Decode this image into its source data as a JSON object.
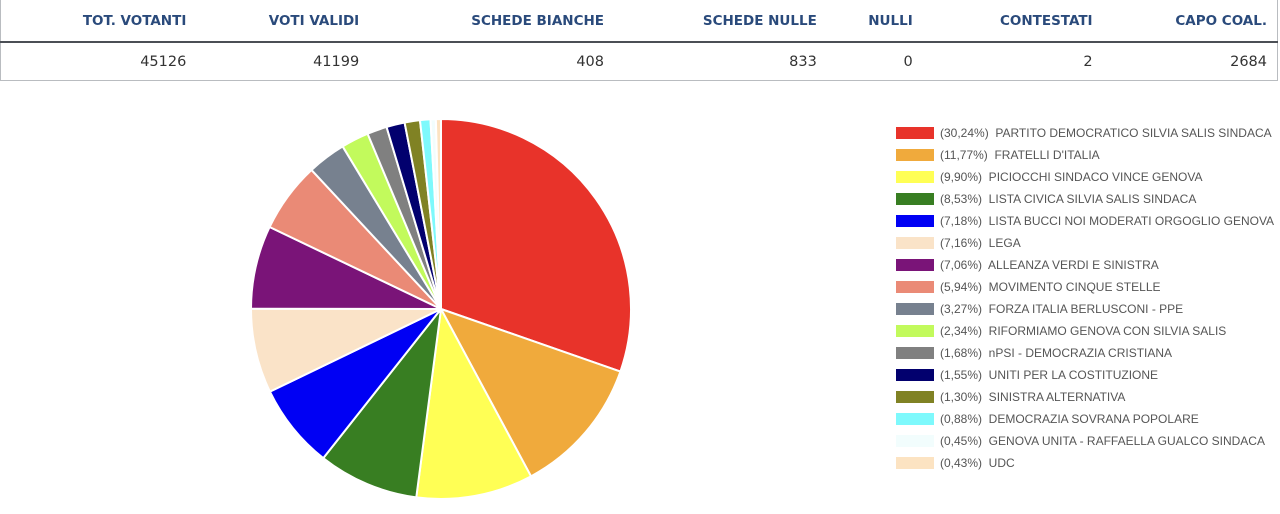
{
  "stats": {
    "headers": [
      "TOT. VOTANTI",
      "VOTI VALIDI",
      "SCHEDE BIANCHE",
      "SCHEDE NULLE",
      "NULLI",
      "CONTESTATI",
      "CAPO COAL."
    ],
    "values": [
      "45126",
      "41199",
      "408",
      "833",
      "0",
      "2",
      "2684"
    ]
  },
  "chart_data": {
    "type": "pie",
    "slices": [
      {
        "label": "PARTITO DEMOCRATICO SILVIA SALIS SINDACA",
        "pct_text": "(30,24%)",
        "value": 30.24,
        "color": "#e8332a"
      },
      {
        "label": "FRATELLI D'ITALIA",
        "pct_text": "(11,77%)",
        "value": 11.77,
        "color": "#f0aa3c"
      },
      {
        "label": "PICIOCCHI SINDACO VINCE GENOVA",
        "pct_text": "(9,90%)",
        "value": 9.9,
        "color": "#ffff55"
      },
      {
        "label": "LISTA CIVICA SILVIA SALIS SINDACA",
        "pct_text": "(8,53%)",
        "value": 8.53,
        "color": "#387e22"
      },
      {
        "label": "LISTA BUCCI NOI MODERATI ORGOGLIO GENOVA",
        "pct_text": "(7,18%)",
        "value": 7.18,
        "color": "#0000f4"
      },
      {
        "label": "LEGA",
        "pct_text": "(7,16%)",
        "value": 7.16,
        "color": "#fae3c8"
      },
      {
        "label": "ALLEANZA VERDI E SINISTRA",
        "pct_text": "(7,06%)",
        "value": 7.06,
        "color": "#7a1478"
      },
      {
        "label": "MOVIMENTO CINQUE STELLE",
        "pct_text": "(5,94%)",
        "value": 5.94,
        "color": "#ea8a76"
      },
      {
        "label": "FORZA ITALIA BERLUSCONI - PPE",
        "pct_text": "(3,27%)",
        "value": 3.27,
        "color": "#77818f"
      },
      {
        "label": "RIFORMIAMO GENOVA CON SILVIA SALIS",
        "pct_text": "(2,34%)",
        "value": 2.34,
        "color": "#c2fa5c"
      },
      {
        "label": "nPSI - DEMOCRAZIA CRISTIANA",
        "pct_text": "(1,68%)",
        "value": 1.68,
        "color": "#808080"
      },
      {
        "label": "UNITI PER LA COSTITUZIONE",
        "pct_text": "(1,55%)",
        "value": 1.55,
        "color": "#02006e"
      },
      {
        "label": "SINISTRA ALTERNATIVA",
        "pct_text": "(1,30%)",
        "value": 1.3,
        "color": "#808224"
      },
      {
        "label": "DEMOCRAZIA SOVRANA POPOLARE",
        "pct_text": "(0,88%)",
        "value": 0.88,
        "color": "#7ef9fc"
      },
      {
        "label": "GENOVA UNITA - RAFFAELLA GUALCO SINDACA",
        "pct_text": "(0,45%)",
        "value": 0.45,
        "color": "#f2fdfd"
      },
      {
        "label": "UDC",
        "pct_text": "(0,43%)",
        "value": 0.43,
        "color": "#fce3c2"
      }
    ],
    "legend_position": "right"
  }
}
